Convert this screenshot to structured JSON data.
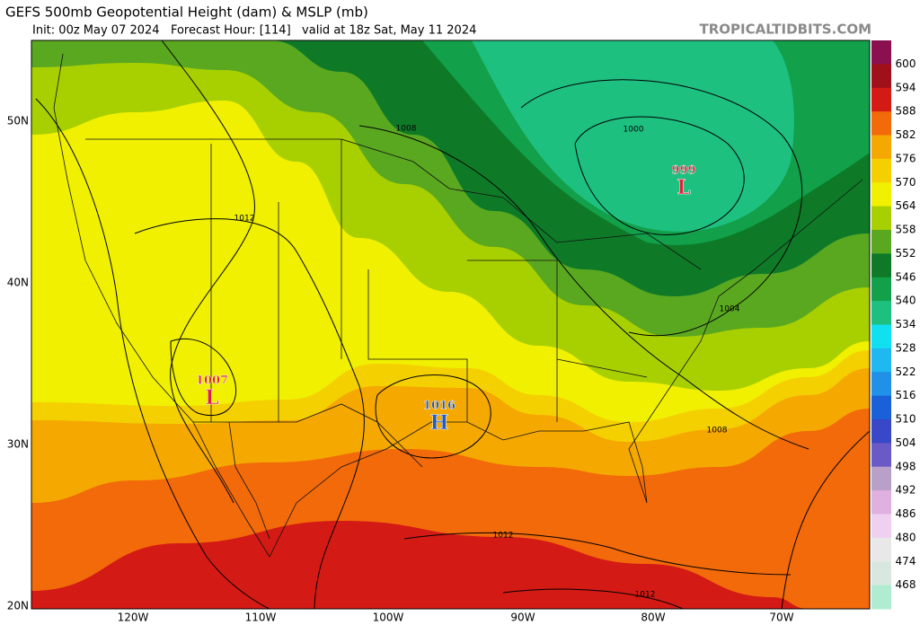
{
  "header": {
    "title": "GEFS 500mb Geopotential Height (dam) & MSLP (mb)",
    "subtitle": "Init: 00z May 07 2024   Forecast Hour: [114]   valid at 18z Sat, May 11 2024",
    "credit": "TROPICALTIDBITS.COM"
  },
  "axes": {
    "lat_labels": [
      "50N",
      "40N",
      "30N",
      "20N"
    ],
    "lon_labels": [
      "120W",
      "110W",
      "100W",
      "90W",
      "80W",
      "70W"
    ]
  },
  "colorbar": {
    "labels": [
      "600",
      "594",
      "588",
      "582",
      "576",
      "570",
      "564",
      "558",
      "552",
      "546",
      "540",
      "534",
      "528",
      "522",
      "516",
      "510",
      "504",
      "498",
      "492",
      "486",
      "480",
      "474",
      "468"
    ],
    "colors": [
      "#8b1050",
      "#a0101a",
      "#d41a14",
      "#f26a0a",
      "#f5a800",
      "#f5d000",
      "#f0f000",
      "#a8d000",
      "#5aa820",
      "#0e7a28",
      "#12a04a",
      "#1ec080",
      "#10e0f0",
      "#20b8f0",
      "#2090e8",
      "#1a60d8",
      "#3848c8",
      "#6a5ac8",
      "#b8a0c8",
      "#e0b0e0",
      "#f0d0f0",
      "#e8e8e8",
      "#d8e8e0",
      "#b0ecd0"
    ]
  },
  "centers": [
    {
      "value": "999",
      "letter": "L",
      "color": "#e0203a"
    },
    {
      "value": "1007",
      "letter": "L",
      "color": "#e0203a"
    },
    {
      "value": "1016",
      "letter": "H",
      "color": "#1e5ac8"
    }
  ],
  "contour_labels": [
    "1008",
    "1000",
    "1012",
    "1004",
    "1008",
    "1012",
    "1012"
  ]
}
